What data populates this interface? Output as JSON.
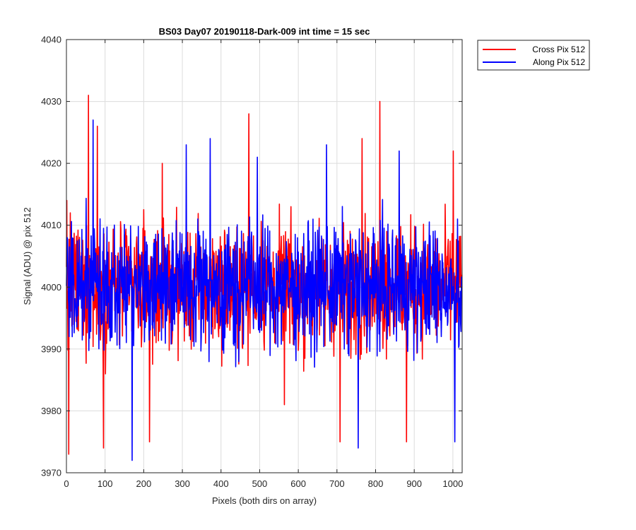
{
  "chart_data": {
    "type": "line",
    "title": "BS03 Day07 20190118-Dark-009 int time = 15 sec",
    "xlabel": "Pixels (both dirs on array)",
    "ylabel": "Signal (ADU) @ pix 512",
    "xlim": [
      0,
      1024
    ],
    "ylim": [
      3970,
      4040
    ],
    "xticks": [
      0,
      100,
      200,
      300,
      400,
      500,
      600,
      700,
      800,
      900,
      1000
    ],
    "yticks": [
      3970,
      3980,
      3990,
      4000,
      4010,
      4020,
      4030,
      4040
    ],
    "grid": true,
    "legend_position": "outside-top-right",
    "series": [
      {
        "name": "Cross Pix 512",
        "color": "#ff0000",
        "baseline": 4000,
        "noise_spread": 5,
        "n_points": 1024,
        "peaks": [
          [
            1,
            4014
          ],
          [
            6,
            3973
          ],
          [
            10,
            4012
          ],
          [
            57,
            4031
          ],
          [
            63,
            3996
          ],
          [
            80,
            4026
          ],
          [
            96,
            3974
          ],
          [
            215,
            3975
          ],
          [
            248,
            4020
          ],
          [
            472,
            4028
          ],
          [
            564,
            3981
          ],
          [
            708,
            3975
          ],
          [
            765,
            4024
          ],
          [
            811,
            4030
          ],
          [
            829,
            4009
          ],
          [
            880,
            3975
          ],
          [
            1001,
            4022
          ],
          [
            1023,
            4002
          ]
        ]
      },
      {
        "name": "Along Pix 512",
        "color": "#0000ff",
        "baseline": 4000,
        "noise_spread": 5,
        "n_points": 1024,
        "peaks": [
          [
            2,
            4008
          ],
          [
            7,
            3992
          ],
          [
            69,
            4027
          ],
          [
            170,
            3972
          ],
          [
            310,
            4023
          ],
          [
            372,
            4024
          ],
          [
            494,
            4021
          ],
          [
            673,
            4023
          ],
          [
            755,
            3974
          ],
          [
            861,
            4022
          ],
          [
            1005,
            3975
          ],
          [
            1012,
            4011
          ],
          [
            1023,
            3998
          ]
        ]
      }
    ]
  }
}
